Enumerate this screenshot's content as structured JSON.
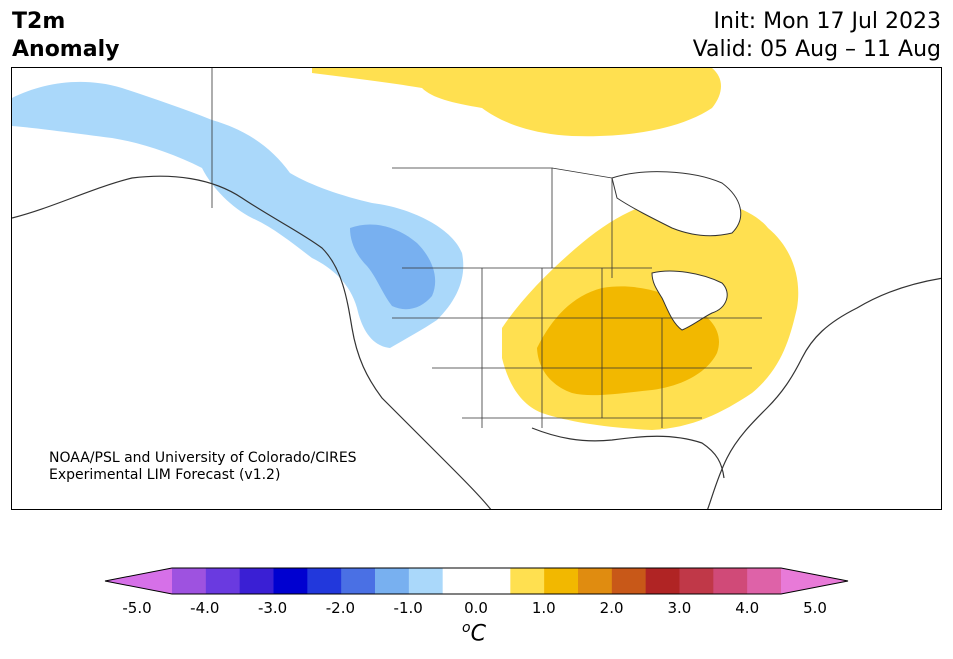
{
  "header": {
    "title_line1": "T2m",
    "title_line2": "Anomaly",
    "init": "Init: Mon 17 Jul 2023",
    "valid": "Valid: 05 Aug – 11 Aug"
  },
  "credit": {
    "line1": "NOAA/PSL and University of Colorado/CIRES",
    "line2": "Experimental LIM Forecast (v1.2)"
  },
  "colorbar": {
    "unit": "C",
    "unit_superscript": "o",
    "ticks": [
      "-5.0",
      "-4.0",
      "-3.0",
      "-2.0",
      "-1.0",
      "0.0",
      "1.0",
      "2.0",
      "3.0",
      "4.0",
      "5.0"
    ],
    "under_color": "#d670e8",
    "over_color": "#e87ad8",
    "colors": [
      "#d670e8",
      "#9e52e0",
      "#6a3ae0",
      "#3a1fd4",
      "#0000d0",
      "#2238dc",
      "#4a70e4",
      "#78b0f0",
      "#aad8fa",
      "#ffffff",
      "#ffffff",
      "#ffe050",
      "#f2b800",
      "#e08c10",
      "#c85818",
      "#b02424",
      "#c03848",
      "#d04a78",
      "#de62a8",
      "#e87ad8"
    ]
  },
  "map_colors": {
    "light_blue": "#aad8fa",
    "mid_blue": "#78b0f0",
    "light_yellow": "#ffe050",
    "yellow": "#f2b800",
    "border": "#333333"
  }
}
